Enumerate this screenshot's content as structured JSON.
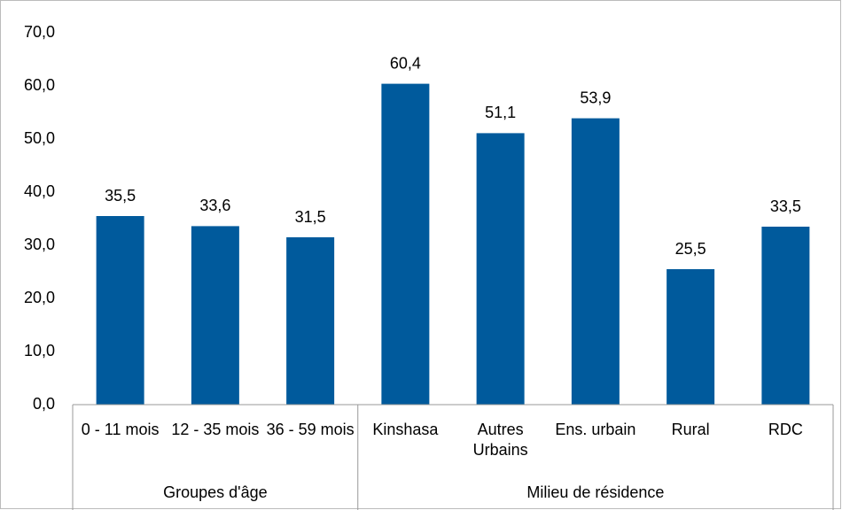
{
  "chart_data": {
    "type": "bar",
    "groups": [
      {
        "name": "Groupes d'âge",
        "categories": [
          "0 - 11 mois",
          "12 - 35 mois",
          "36 - 59 mois"
        ]
      },
      {
        "name": "Milieu de résidence",
        "categories": [
          "Kinshasa",
          "Autres Urbains",
          "Ens. urbain",
          "Rural",
          "RDC"
        ]
      }
    ],
    "values": [
      35.5,
      33.6,
      31.5,
      60.4,
      51.1,
      53.9,
      25.5,
      33.5
    ],
    "value_labels": [
      "35,5",
      "33,6",
      "31,5",
      "60,4",
      "51,1",
      "53,9",
      "25,5",
      "33,5"
    ],
    "color": "#005a9c",
    "ylim": [
      0,
      70
    ],
    "yticks": [
      {
        "value": 0,
        "label": "0,0"
      },
      {
        "value": 10,
        "label": "10,0"
      },
      {
        "value": 20,
        "label": "20,0"
      },
      {
        "value": 30,
        "label": "30,0"
      },
      {
        "value": 40,
        "label": "40,0"
      },
      {
        "value": 50,
        "label": "50,0"
      },
      {
        "value": 60,
        "label": "60,0"
      },
      {
        "value": 70,
        "label": "70,0"
      }
    ],
    "grid": false
  }
}
